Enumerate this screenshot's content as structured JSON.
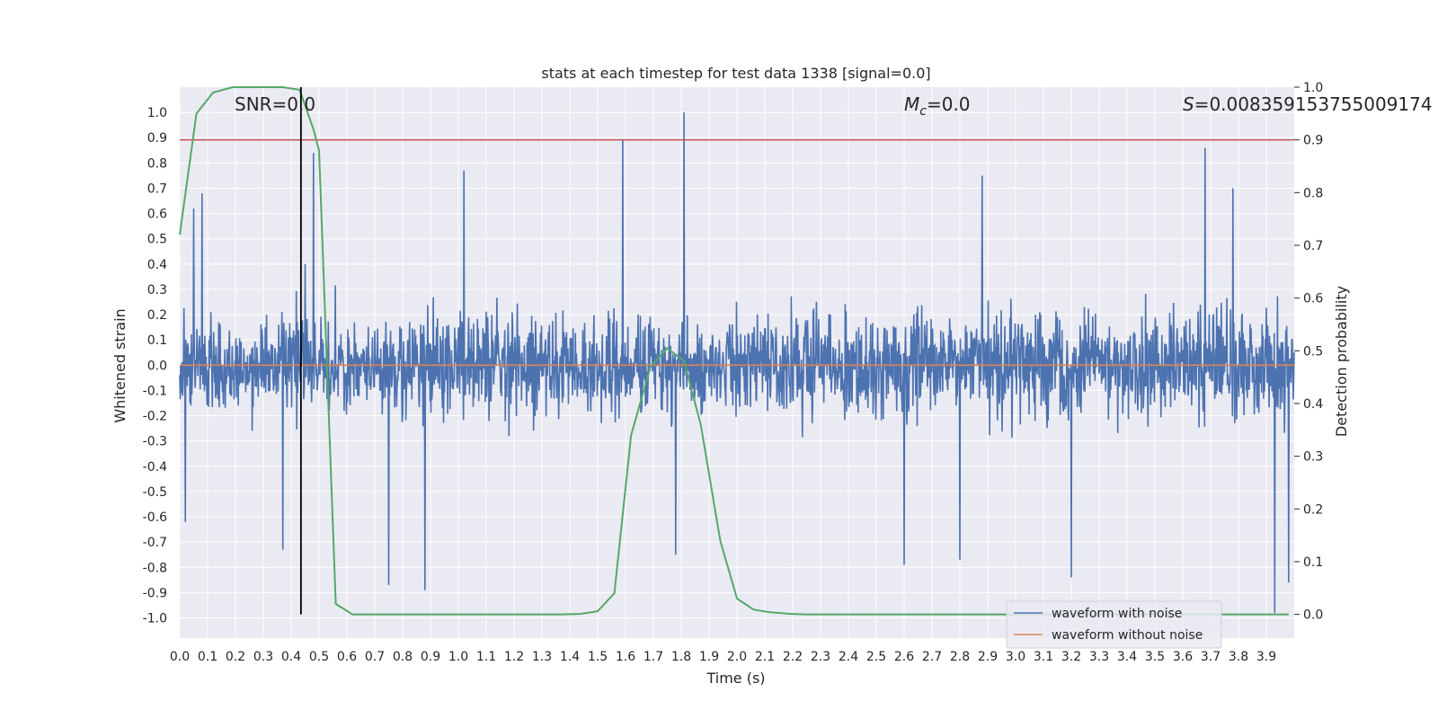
{
  "chart_data": {
    "type": "line",
    "title": "stats at each timestep for test data 1338 [signal=0.0]",
    "xlabel": "Time (s)",
    "ylabel": "Whitened strain",
    "y2label": "Detection probability",
    "xlim": [
      0.0,
      4.0
    ],
    "ylim": [
      -1.08,
      1.1
    ],
    "y2lim": [
      -0.045,
      1.0
    ],
    "xticks": [
      "0.0",
      "0.1",
      "0.2",
      "0.3",
      "0.4",
      "0.5",
      "0.6",
      "0.7",
      "0.8",
      "0.9",
      "1.0",
      "1.1",
      "1.2",
      "1.3",
      "1.4",
      "1.5",
      "1.6",
      "1.7",
      "1.8",
      "1.9",
      "2.0",
      "2.1",
      "2.2",
      "2.3",
      "2.4",
      "2.5",
      "2.6",
      "2.7",
      "2.8",
      "2.9",
      "3.0",
      "3.1",
      "3.2",
      "3.3",
      "3.4",
      "3.5",
      "3.6",
      "3.7",
      "3.8",
      "3.9"
    ],
    "yticks": [
      "1.0",
      "0.9",
      "0.8",
      "0.7",
      "0.6",
      "0.5",
      "0.4",
      "0.3",
      "0.2",
      "0.1",
      "0.0",
      "-0.1",
      "-0.2",
      "-0.3",
      "-0.4",
      "-0.5",
      "-0.6",
      "-0.7",
      "-0.8",
      "-0.9",
      "-1.0"
    ],
    "y2ticks": [
      "1.0",
      "0.9",
      "0.8",
      "0.7",
      "0.6",
      "0.5",
      "0.4",
      "0.3",
      "0.2",
      "0.1",
      "0.0"
    ],
    "grid": true,
    "annotations": {
      "snr": "SNR=0.0",
      "mc_symbol": "M",
      "mc_sub": "c",
      "mc_value": "=0.0",
      "s_symbol": "S",
      "s_value": "=0.008359153755009174"
    },
    "threshold_line": {
      "axis": "y2",
      "value": 0.9,
      "color": "#c44e52"
    },
    "marker_line": {
      "x": 0.435,
      "y2_from": 0.0,
      "y2_to": 1.0,
      "color": "#000000"
    },
    "series": [
      {
        "name": "waveform with noise",
        "axis": "y",
        "color": "#4c72b0",
        "noise_description": "dense noise, roughly symmetric about 0, amplitude mostly within ±0.6",
        "peaks": [
          {
            "x": 0.05,
            "y": 0.62
          },
          {
            "x": 0.08,
            "y": 0.68
          },
          {
            "x": 0.48,
            "y": 0.84
          },
          {
            "x": 1.59,
            "y": 0.89
          },
          {
            "x": 1.81,
            "y": 1.0
          },
          {
            "x": 3.68,
            "y": 0.86
          },
          {
            "x": 0.45,
            "y": 0.4
          },
          {
            "x": 1.02,
            "y": 0.77
          },
          {
            "x": 2.88,
            "y": 0.75
          },
          {
            "x": 3.78,
            "y": 0.7
          }
        ],
        "troughs": [
          {
            "x": 0.37,
            "y": -0.73
          },
          {
            "x": 0.75,
            "y": -0.87
          },
          {
            "x": 0.88,
            "y": -0.89
          },
          {
            "x": 1.78,
            "y": -0.75
          },
          {
            "x": 2.6,
            "y": -0.79
          },
          {
            "x": 2.8,
            "y": -0.77
          },
          {
            "x": 3.2,
            "y": -0.84
          },
          {
            "x": 3.93,
            "y": -0.98
          },
          {
            "x": 3.98,
            "y": -0.86
          },
          {
            "x": 0.02,
            "y": -0.62
          }
        ]
      },
      {
        "name": "waveform without noise",
        "axis": "y",
        "color": "#dd8452",
        "x": [
          0.0,
          4.0
        ],
        "y": [
          0.0,
          0.0
        ]
      },
      {
        "name": "detection probability",
        "axis": "y2",
        "color": "#55a868",
        "x": [
          0.0,
          0.06,
          0.12,
          0.19,
          0.25,
          0.31,
          0.37,
          0.43,
          0.48,
          0.5,
          0.56,
          0.62,
          0.69,
          0.75,
          0.81,
          0.87,
          0.94,
          1.0,
          1.06,
          1.12,
          1.19,
          1.25,
          1.31,
          1.37,
          1.44,
          1.5,
          1.56,
          1.62,
          1.69,
          1.75,
          1.81,
          1.87,
          1.94,
          2.0,
          2.06,
          2.12,
          2.19,
          2.25,
          2.31,
          2.37,
          2.44,
          2.5,
          2.56,
          2.62,
          2.69,
          2.75,
          2.81,
          2.87,
          2.94,
          3.0,
          3.06,
          3.12,
          3.19,
          3.25,
          3.31,
          3.37,
          3.44,
          3.5,
          3.56,
          3.62,
          3.69,
          3.75,
          3.81,
          3.87,
          3.94,
          3.98
        ],
        "y": [
          0.72,
          0.95,
          0.99,
          1.0,
          1.0,
          1.0,
          1.0,
          0.995,
          0.92,
          0.88,
          0.02,
          0.0,
          0.0,
          0.0,
          0.0,
          0.0,
          0.0,
          0.0,
          0.0,
          0.0,
          0.0,
          0.0,
          0.0,
          0.0,
          0.001,
          0.006,
          0.04,
          0.34,
          0.47,
          0.505,
          0.48,
          0.36,
          0.14,
          0.03,
          0.009,
          0.004,
          0.001,
          0.0,
          0.0,
          0.0,
          0.0,
          0.0,
          0.0,
          0.0,
          0.0,
          0.0,
          0.0,
          0.0,
          0.0,
          0.0,
          0.0,
          0.0,
          0.0,
          0.0,
          0.0,
          0.0,
          0.0,
          0.0,
          0.0,
          0.0,
          0.0,
          0.0,
          0.0,
          0.0,
          0.0,
          0.0
        ]
      }
    ],
    "legend": {
      "position": "lower-right",
      "entries": [
        {
          "label": "waveform with noise",
          "color": "#4c72b0"
        },
        {
          "label": "waveform without noise",
          "color": "#dd8452"
        }
      ]
    }
  }
}
